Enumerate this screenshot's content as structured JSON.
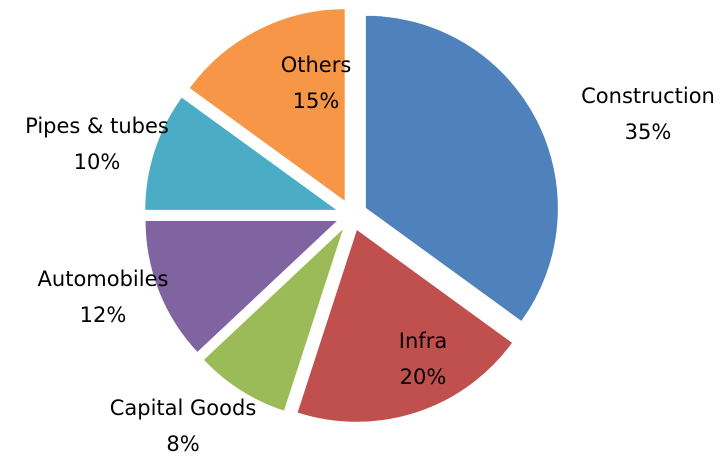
{
  "chart_data": {
    "type": "pie",
    "title": "",
    "exploded": true,
    "start_angle_deg": 0,
    "direction": "clockwise",
    "legend": "none",
    "slices": [
      {
        "name": "Construction",
        "value": 35,
        "value_label": "35%",
        "color": "#4F81BD"
      },
      {
        "name": "Infra",
        "value": 20,
        "value_label": "20%",
        "color": "#C0504D"
      },
      {
        "name": "Capital Goods",
        "value": 8,
        "value_label": "8%",
        "color": "#9BBB59"
      },
      {
        "name": "Automobiles",
        "value": 12,
        "value_label": "12%",
        "color": "#8064A2"
      },
      {
        "name": "Pipes & tubes",
        "value": 10,
        "value_label": "10%",
        "color": "#4BACC6"
      },
      {
        "name": "Others",
        "value": 15,
        "value_label": "15%",
        "color": "#F79646"
      }
    ]
  }
}
